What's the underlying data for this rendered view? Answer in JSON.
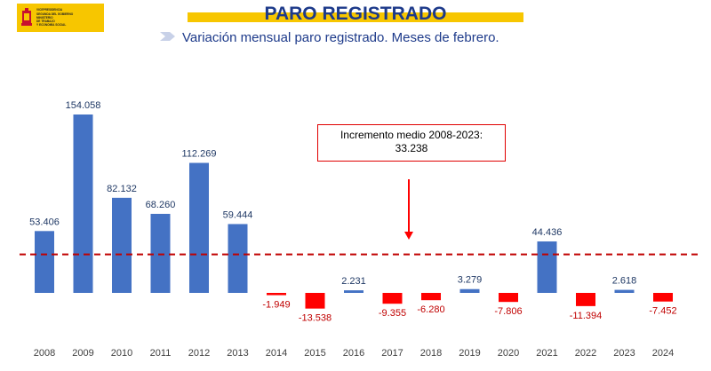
{
  "header": {
    "logo_lines": [
      "VICEPRESIDENCIA",
      "SEGUNDA DEL GOBIERNO",
      "MINISTERIO",
      "DE TRABAJO",
      "Y ECONOMÍA SOCIAL"
    ],
    "title": "PARO REGISTRADO",
    "subtitle": "Variación mensual paro registrado. Meses de febrero."
  },
  "annotation": {
    "line1": "Incremento medio 2008-2023:",
    "line2": "33.238"
  },
  "colors": {
    "positive": "#4472c4",
    "negative": "#ff0000",
    "reference": "#c00000",
    "label_positive": "#1f3864",
    "label_negative": "#c00000",
    "title": "#1d3a8a",
    "accent": "#f7c600"
  },
  "chart_data": {
    "type": "bar",
    "categories": [
      "2008",
      "2009",
      "2010",
      "2011",
      "2012",
      "2013",
      "2014",
      "2015",
      "2016",
      "2017",
      "2018",
      "2019",
      "2020",
      "2021",
      "2022",
      "2023",
      "2024"
    ],
    "values": [
      53406,
      154058,
      82132,
      68260,
      112269,
      59444,
      -1949,
      -13538,
      2231,
      -9355,
      -6280,
      3279,
      -7806,
      44436,
      -11394,
      2618,
      -7452
    ],
    "labels": [
      "53.406",
      "154.058",
      "82.132",
      "68.260",
      "112.269",
      "59.444",
      "-1.949",
      "-13.538",
      "2.231",
      "-9.355",
      "-6.280",
      "3.279",
      "-7.806",
      "44.436",
      "-11.394",
      "2.618",
      "-7.452"
    ],
    "reference_line": 33238,
    "title": "",
    "xlabel": "",
    "ylabel": ""
  }
}
